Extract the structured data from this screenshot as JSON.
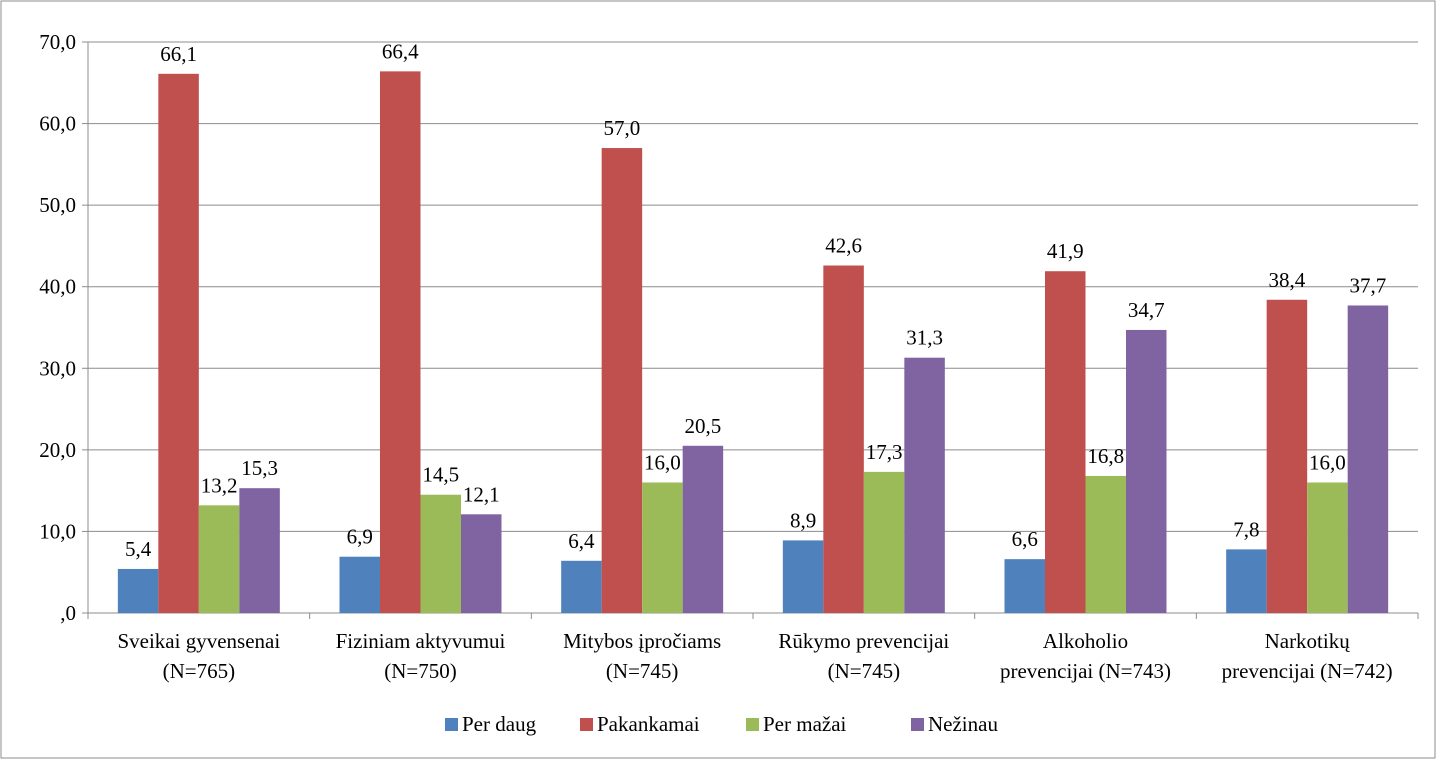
{
  "chart_data": {
    "type": "bar",
    "title": "",
    "xlabel": "",
    "ylabel": "",
    "ylim": [
      0,
      70
    ],
    "ytick_step": 10,
    "ytick_labels": [
      ",0",
      "10,0",
      "20,0",
      "30,0",
      "40,0",
      "50,0",
      "60,0",
      "70,0"
    ],
    "grid": true,
    "legend_position": "bottom",
    "categories": [
      [
        "Sveikai gyvensenai",
        "(N=765)"
      ],
      [
        "Fiziniam aktyvumui",
        "(N=750)"
      ],
      [
        "Mitybos įpročiams",
        "(N=745)"
      ],
      [
        "Rūkymo prevencijai",
        "(N=745)"
      ],
      [
        "Alkoholio",
        "prevencijai (N=743)"
      ],
      [
        "Narkotikų",
        "prevencijai (N=742)"
      ]
    ],
    "series": [
      {
        "name": "Per daug",
        "color": "#4F81BD",
        "values": [
          5.4,
          6.9,
          6.4,
          8.9,
          6.6,
          7.8
        ],
        "labels": [
          "5,4",
          "6,9",
          "6,4",
          "8,9",
          "6,6",
          "7,8"
        ]
      },
      {
        "name": "Pakankamai",
        "color": "#C0504D",
        "values": [
          66.1,
          66.4,
          57.0,
          42.6,
          41.9,
          38.4
        ],
        "labels": [
          "66,1",
          "66,4",
          "57,0",
          "42,6",
          "41,9",
          "38,4"
        ]
      },
      {
        "name": "Per mažai",
        "color": "#9BBB59",
        "values": [
          13.2,
          14.5,
          16.0,
          17.3,
          16.8,
          16.0
        ],
        "labels": [
          "13,2",
          "14,5",
          "16,0",
          "17,3",
          "16,8",
          "16,0"
        ]
      },
      {
        "name": "Nežinau",
        "color": "#8064A2",
        "values": [
          15.3,
          12.1,
          20.5,
          31.3,
          34.7,
          37.7
        ],
        "labels": [
          "15,3",
          "12,1",
          "20,5",
          "31,3",
          "34,7",
          "37,7"
        ]
      }
    ]
  }
}
